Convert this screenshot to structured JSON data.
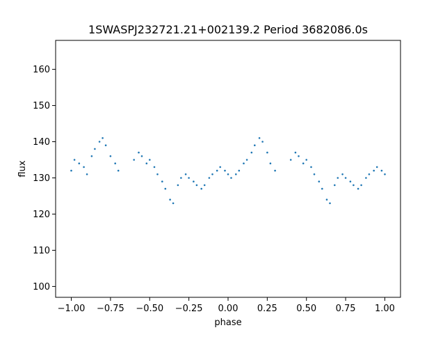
{
  "chart_data": {
    "type": "scatter",
    "title": "1SWASPJ232721.21+002139.2 Period 3682086.0s",
    "xlabel": "phase",
    "ylabel": "flux",
    "xlim": [
      -1.1,
      1.1
    ],
    "ylim": [
      97,
      168
    ],
    "grid": false,
    "legend": "none",
    "marker_color": "#1f77b4",
    "x_ticks": [
      {
        "value": -1.0,
        "label": "−1.00"
      },
      {
        "value": -0.75,
        "label": "−0.75"
      },
      {
        "value": -0.5,
        "label": "−0.50"
      },
      {
        "value": -0.25,
        "label": "−0.25"
      },
      {
        "value": 0.0,
        "label": "0.00"
      },
      {
        "value": 0.25,
        "label": "0.25"
      },
      {
        "value": 0.5,
        "label": "0.50"
      },
      {
        "value": 0.75,
        "label": "0.75"
      },
      {
        "value": 1.0,
        "label": "1.00"
      }
    ],
    "y_ticks": [
      {
        "value": 100,
        "label": "100"
      },
      {
        "value": 110,
        "label": "110"
      },
      {
        "value": 120,
        "label": "120"
      },
      {
        "value": 130,
        "label": "130"
      },
      {
        "value": 140,
        "label": "140"
      },
      {
        "value": 150,
        "label": "150"
      },
      {
        "value": 160,
        "label": "160"
      }
    ],
    "series": [
      {
        "points": [
          [
            -1.0,
            132
          ],
          [
            -0.98,
            135
          ],
          [
            -0.95,
            134
          ],
          [
            -0.92,
            133
          ],
          [
            -0.9,
            131
          ],
          [
            -0.87,
            136
          ],
          [
            -0.85,
            138
          ],
          [
            -0.82,
            140
          ],
          [
            -0.8,
            141
          ],
          [
            -0.78,
            139
          ],
          [
            -0.75,
            136
          ],
          [
            -0.72,
            134
          ],
          [
            -0.7,
            132
          ],
          [
            -0.6,
            135
          ],
          [
            -0.57,
            137
          ],
          [
            -0.55,
            136
          ],
          [
            -0.52,
            134
          ],
          [
            -0.5,
            135
          ],
          [
            -0.47,
            133
          ],
          [
            -0.45,
            131
          ],
          [
            -0.42,
            129
          ],
          [
            -0.4,
            127
          ],
          [
            -0.37,
            124
          ],
          [
            -0.35,
            123
          ],
          [
            -0.32,
            128
          ],
          [
            -0.3,
            130
          ],
          [
            -0.27,
            131
          ],
          [
            -0.25,
            130
          ],
          [
            -0.22,
            129
          ],
          [
            -0.2,
            128
          ],
          [
            -0.17,
            127
          ],
          [
            -0.15,
            128
          ],
          [
            -0.12,
            130
          ],
          [
            -0.1,
            131
          ],
          [
            -0.07,
            132
          ],
          [
            -0.05,
            133
          ],
          [
            -0.02,
            132
          ],
          [
            0.0,
            131
          ],
          [
            0.02,
            130
          ],
          [
            0.05,
            131
          ],
          [
            0.07,
            132
          ],
          [
            0.1,
            134
          ],
          [
            0.12,
            135
          ],
          [
            0.15,
            137
          ],
          [
            0.17,
            139
          ],
          [
            0.2,
            141
          ],
          [
            0.22,
            140
          ],
          [
            0.25,
            137
          ],
          [
            0.27,
            134
          ],
          [
            0.3,
            132
          ],
          [
            0.4,
            135
          ],
          [
            0.43,
            137
          ],
          [
            0.45,
            136
          ],
          [
            0.48,
            134
          ],
          [
            0.5,
            135
          ],
          [
            0.53,
            133
          ],
          [
            0.55,
            131
          ],
          [
            0.58,
            129
          ],
          [
            0.6,
            127
          ],
          [
            0.63,
            124
          ],
          [
            0.65,
            123
          ],
          [
            0.68,
            128
          ],
          [
            0.7,
            130
          ],
          [
            0.73,
            131
          ],
          [
            0.75,
            130
          ],
          [
            0.78,
            129
          ],
          [
            0.8,
            128
          ],
          [
            0.83,
            127
          ],
          [
            0.85,
            128
          ],
          [
            0.88,
            130
          ],
          [
            0.9,
            131
          ],
          [
            0.93,
            132
          ],
          [
            0.95,
            133
          ],
          [
            0.98,
            132
          ],
          [
            1.0,
            131
          ]
        ]
      }
    ]
  }
}
